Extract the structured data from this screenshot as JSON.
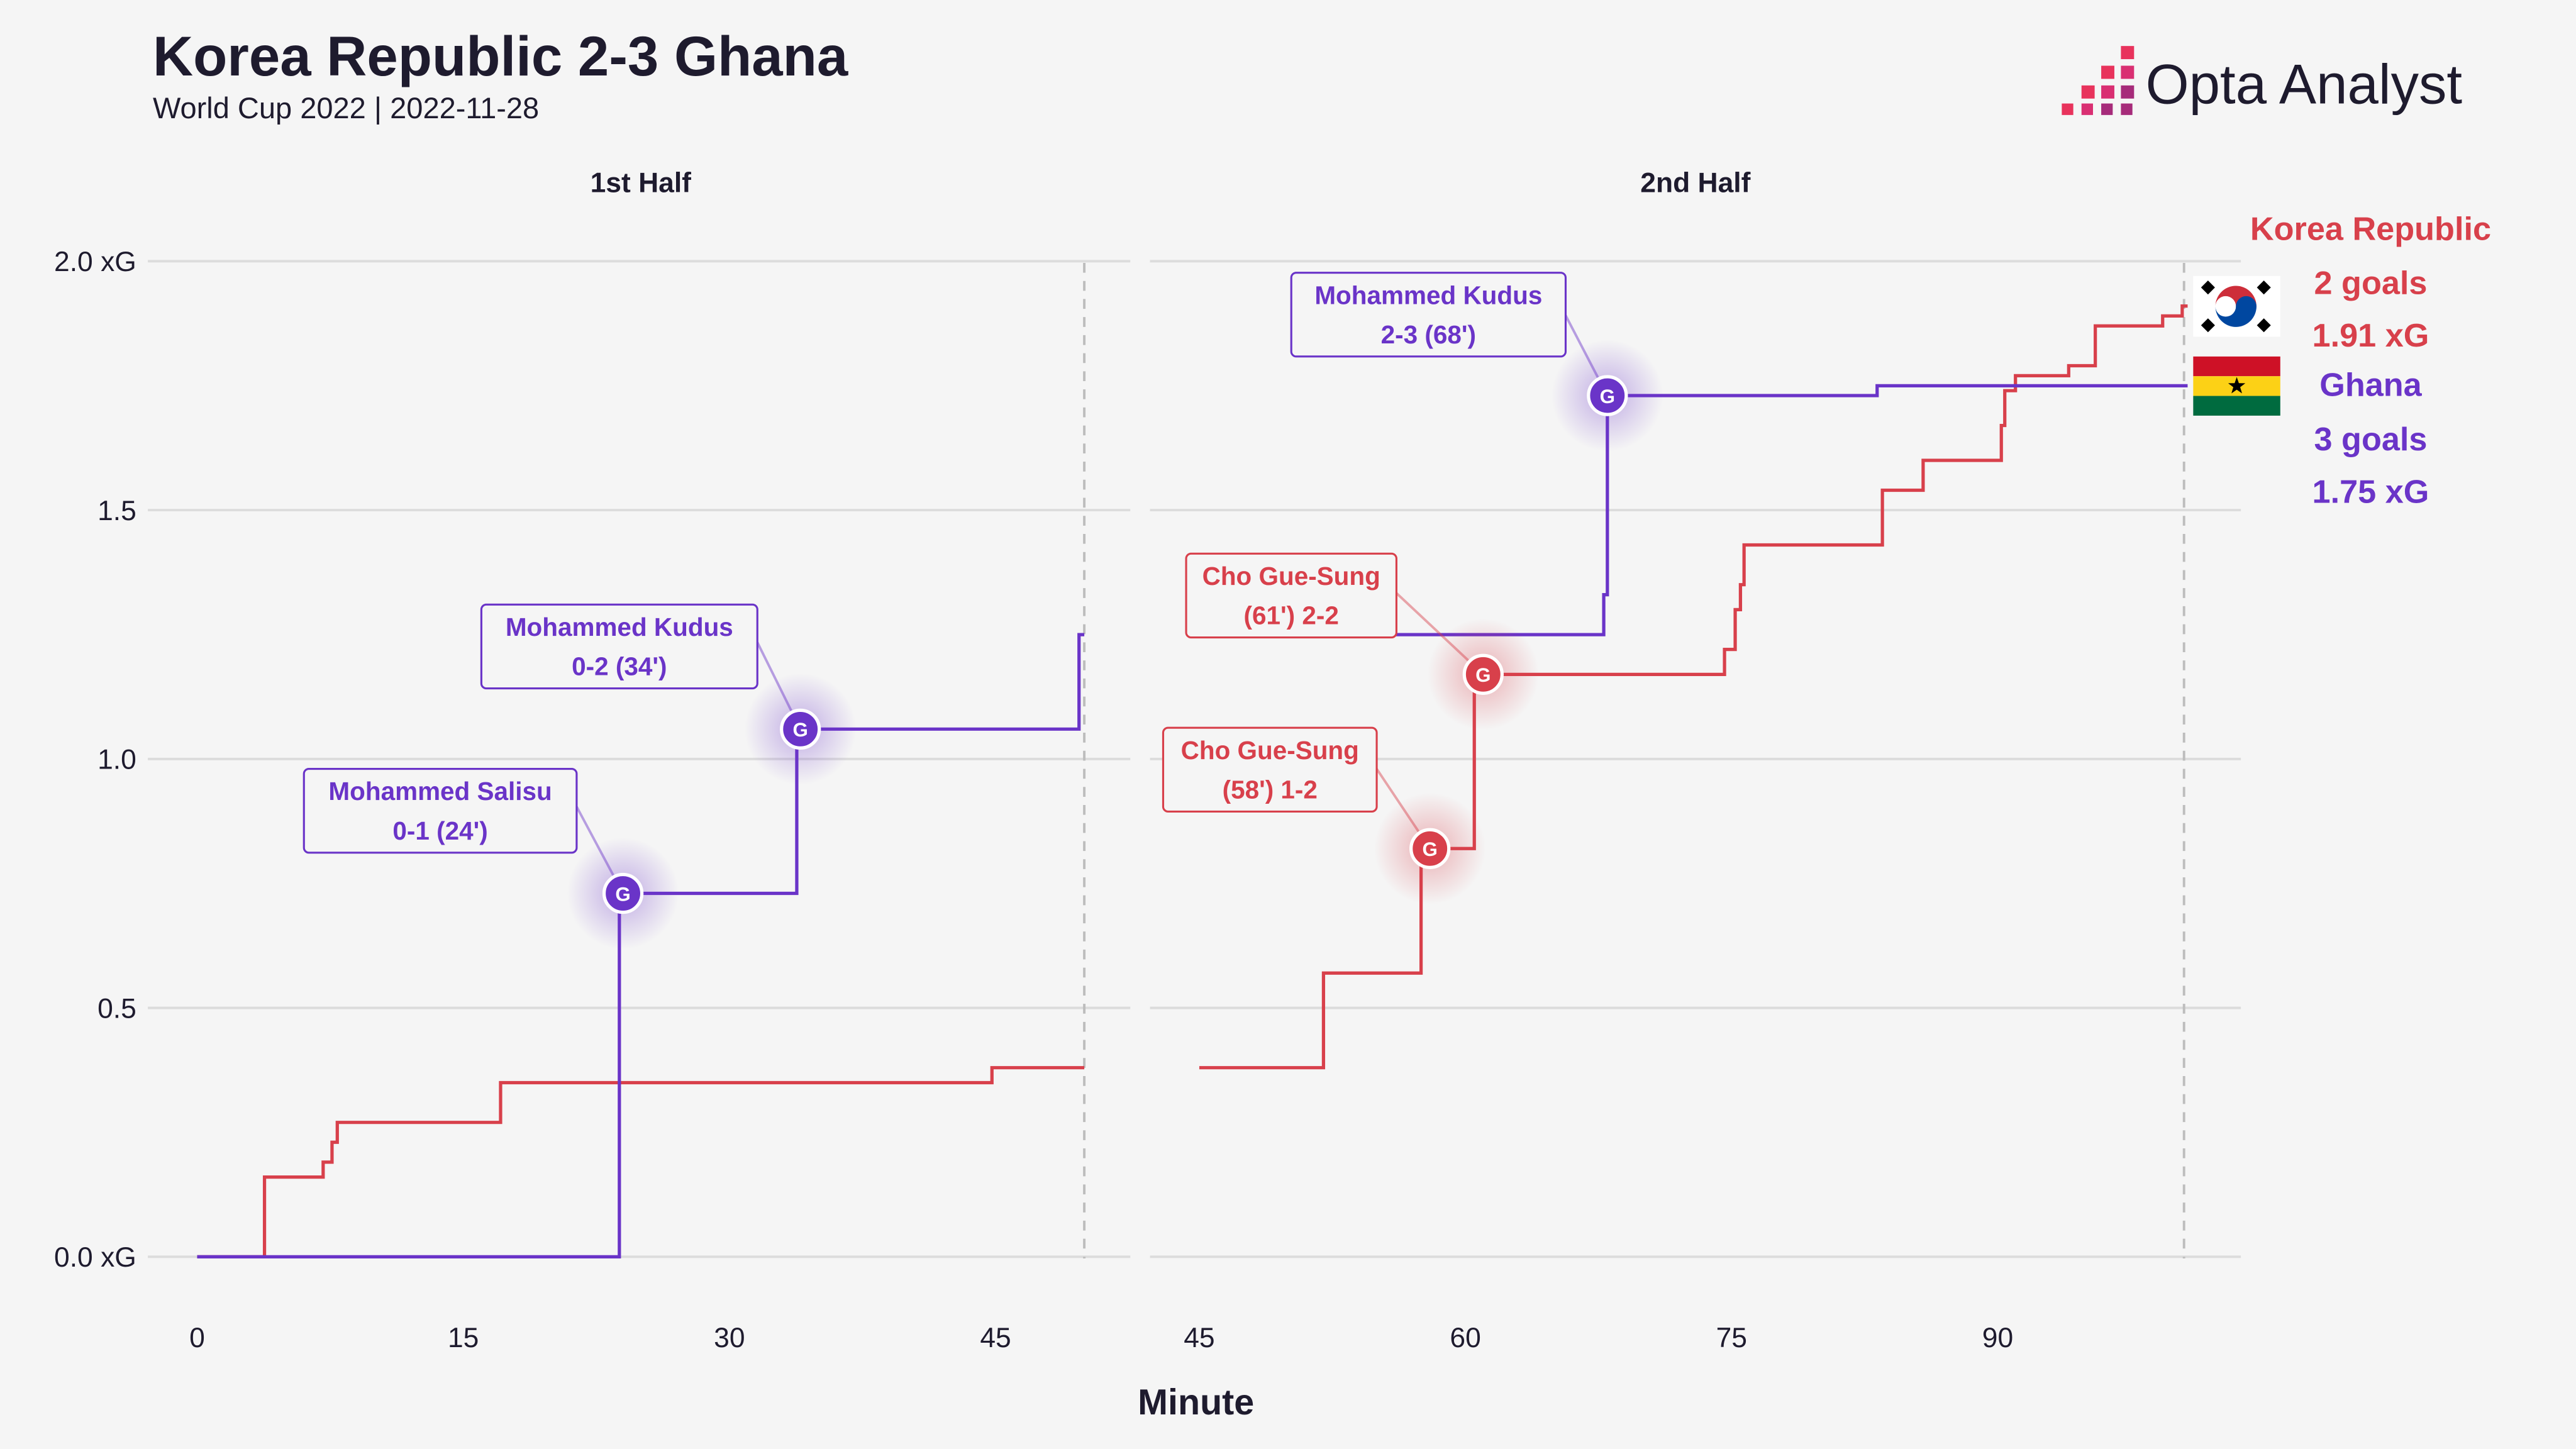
{
  "header": {
    "title": "Korea Republic 2-3 Ghana",
    "subtitle": "World Cup 2022 | 2022-11-28",
    "brand_name": "Opta Analyst",
    "brand_colors": [
      "#e8335c",
      "#a62b7a"
    ]
  },
  "colors": {
    "korea": "#d8404b",
    "ghana": "#6a34c8",
    "grid": "#dcdcdc",
    "text": "#1e1b2e",
    "background": "#f5f5f5"
  },
  "chart_data": {
    "type": "line",
    "subtype": "cumulative xG step chart",
    "xlabel": "Minute",
    "ylabel": "",
    "ylim": [
      0,
      2
    ],
    "y_ticks": [
      "0.0 xG",
      "0.5",
      "1.0",
      "1.5",
      "2.0 xG"
    ],
    "grid": "horizontal",
    "panels": [
      {
        "title": "1st Half",
        "xlim": [
          0,
          53
        ],
        "x_ticks": [
          0,
          15,
          30,
          45
        ],
        "end_marker": 50,
        "series": [
          {
            "name": "Korea Republic",
            "color": "#d8404b",
            "points": [
              [
                0,
                0
              ],
              [
                3.8,
                0
              ],
              [
                3.8,
                0.16
              ],
              [
                7.1,
                0.16
              ],
              [
                7.1,
                0.19
              ],
              [
                7.6,
                0.19
              ],
              [
                7.6,
                0.23
              ],
              [
                7.9,
                0.23
              ],
              [
                7.9,
                0.27
              ],
              [
                17.1,
                0.27
              ],
              [
                17.1,
                0.35
              ],
              [
                44.8,
                0.35
              ],
              [
                44.8,
                0.38
              ],
              [
                50,
                0.38
              ]
            ]
          },
          {
            "name": "Ghana",
            "color": "#6a34c8",
            "points": [
              [
                0,
                0
              ],
              [
                23.8,
                0
              ],
              [
                23.8,
                0.73
              ],
              [
                33.8,
                0.73
              ],
              [
                33.8,
                1.06
              ],
              [
                49.7,
                1.06
              ],
              [
                49.7,
                1.25
              ],
              [
                50,
                1.25
              ]
            ]
          }
        ],
        "goals": [
          {
            "team": "Ghana",
            "minute": 24,
            "xg": 0.73,
            "marker": "G",
            "player": "Mohammed Salisu",
            "detail": "0-1 (24')"
          },
          {
            "team": "Ghana",
            "minute": 34,
            "xg": 1.06,
            "marker": "G",
            "player": "Mohammed Kudus",
            "detail": "0-2 (34')"
          }
        ]
      },
      {
        "title": "2nd Half",
        "xlim": [
          43,
          104
        ],
        "x_ticks": [
          45,
          60,
          75,
          90
        ],
        "end_marker": 100.5,
        "series": [
          {
            "name": "Korea Republic",
            "color": "#d8404b",
            "points": [
              [
                45,
                0.38
              ],
              [
                52,
                0.38
              ],
              [
                52,
                0.57
              ],
              [
                57.5,
                0.57
              ],
              [
                57.5,
                0.82
              ],
              [
                60.5,
                0.82
              ],
              [
                60.5,
                1.17
              ],
              [
                74.6,
                1.17
              ],
              [
                74.6,
                1.22
              ],
              [
                75.2,
                1.22
              ],
              [
                75.2,
                1.3
              ],
              [
                75.5,
                1.3
              ],
              [
                75.5,
                1.35
              ],
              [
                75.7,
                1.35
              ],
              [
                75.7,
                1.43
              ],
              [
                83.5,
                1.43
              ],
              [
                83.5,
                1.54
              ],
              [
                85.8,
                1.54
              ],
              [
                85.8,
                1.6
              ],
              [
                90.2,
                1.6
              ],
              [
                90.2,
                1.67
              ],
              [
                90.4,
                1.67
              ],
              [
                90.4,
                1.74
              ],
              [
                91,
                1.74
              ],
              [
                91,
                1.77
              ],
              [
                94,
                1.77
              ],
              [
                94,
                1.79
              ],
              [
                95.5,
                1.79
              ],
              [
                95.5,
                1.87
              ],
              [
                99.3,
                1.87
              ],
              [
                99.3,
                1.89
              ],
              [
                100.4,
                1.89
              ],
              [
                100.4,
                1.91
              ],
              [
                100.7,
                1.91
              ]
            ]
          },
          {
            "name": "Ghana",
            "color": "#6a34c8",
            "points": [
              [
                45,
                1.25
              ],
              [
                67.8,
                1.25
              ],
              [
                67.8,
                1.33
              ],
              [
                68,
                1.33
              ],
              [
                68,
                1.73
              ],
              [
                83.2,
                1.73
              ],
              [
                83.2,
                1.75
              ],
              [
                100.7,
                1.75
              ]
            ]
          }
        ],
        "goals": [
          {
            "team": "Korea Republic",
            "minute": 58,
            "xg": 0.82,
            "marker": "G",
            "player": "Cho Gue-Sung",
            "detail": "(58') 1-2"
          },
          {
            "team": "Korea Republic",
            "minute": 61,
            "xg": 1.17,
            "marker": "G",
            "player": "Cho Gue-Sung",
            "detail": "(61') 2-2"
          },
          {
            "team": "Ghana",
            "minute": 68,
            "xg": 1.73,
            "marker": "G",
            "player": "Mohammed Kudus",
            "detail": "2-3 (68')"
          }
        ]
      }
    ],
    "legend": {
      "placement": "right",
      "teams": [
        {
          "name": "Korea Republic",
          "goals": "2 goals",
          "xg": "1.91 xG",
          "flag": "south-korea-flag-icon",
          "color": "#d8404b"
        },
        {
          "name": "Ghana",
          "goals": "3 goals",
          "xg": "1.75 xG",
          "flag": "ghana-flag-icon",
          "color": "#6a34c8"
        }
      ]
    }
  }
}
